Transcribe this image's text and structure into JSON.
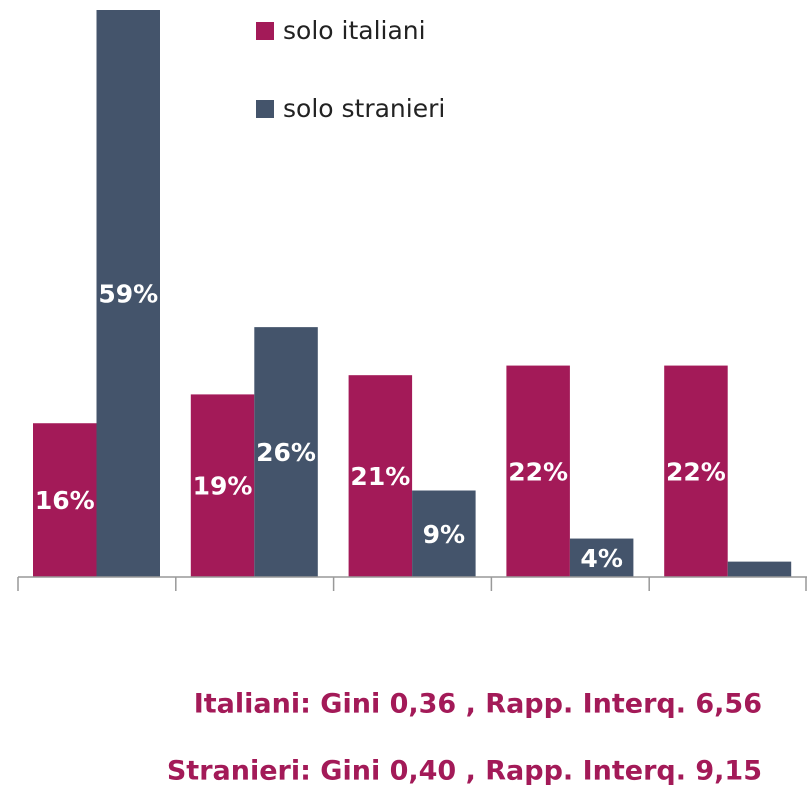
{
  "chart_data": {
    "type": "bar",
    "categories": [
      null,
      null,
      null,
      null,
      null
    ],
    "series": [
      {
        "name": "solo italiani",
        "color": "#a31a58",
        "values": [
          16,
          19,
          21,
          22,
          22
        ],
        "value_labels": [
          "16%",
          "19%",
          "21%",
          "22%",
          "22%"
        ]
      },
      {
        "name": "solo stranieri",
        "color": "#44546b",
        "values": [
          59,
          26,
          9,
          4,
          1.6
        ],
        "value_labels": [
          "59%",
          "26%",
          "9%",
          "4%",
          null
        ]
      }
    ],
    "notes": [
      "Italiani: Gini 0,36 , Rapp. Interq. 6,56",
      "Stranieri: Gini 0,40 , Rapp. Interq. 9,15"
    ]
  }
}
